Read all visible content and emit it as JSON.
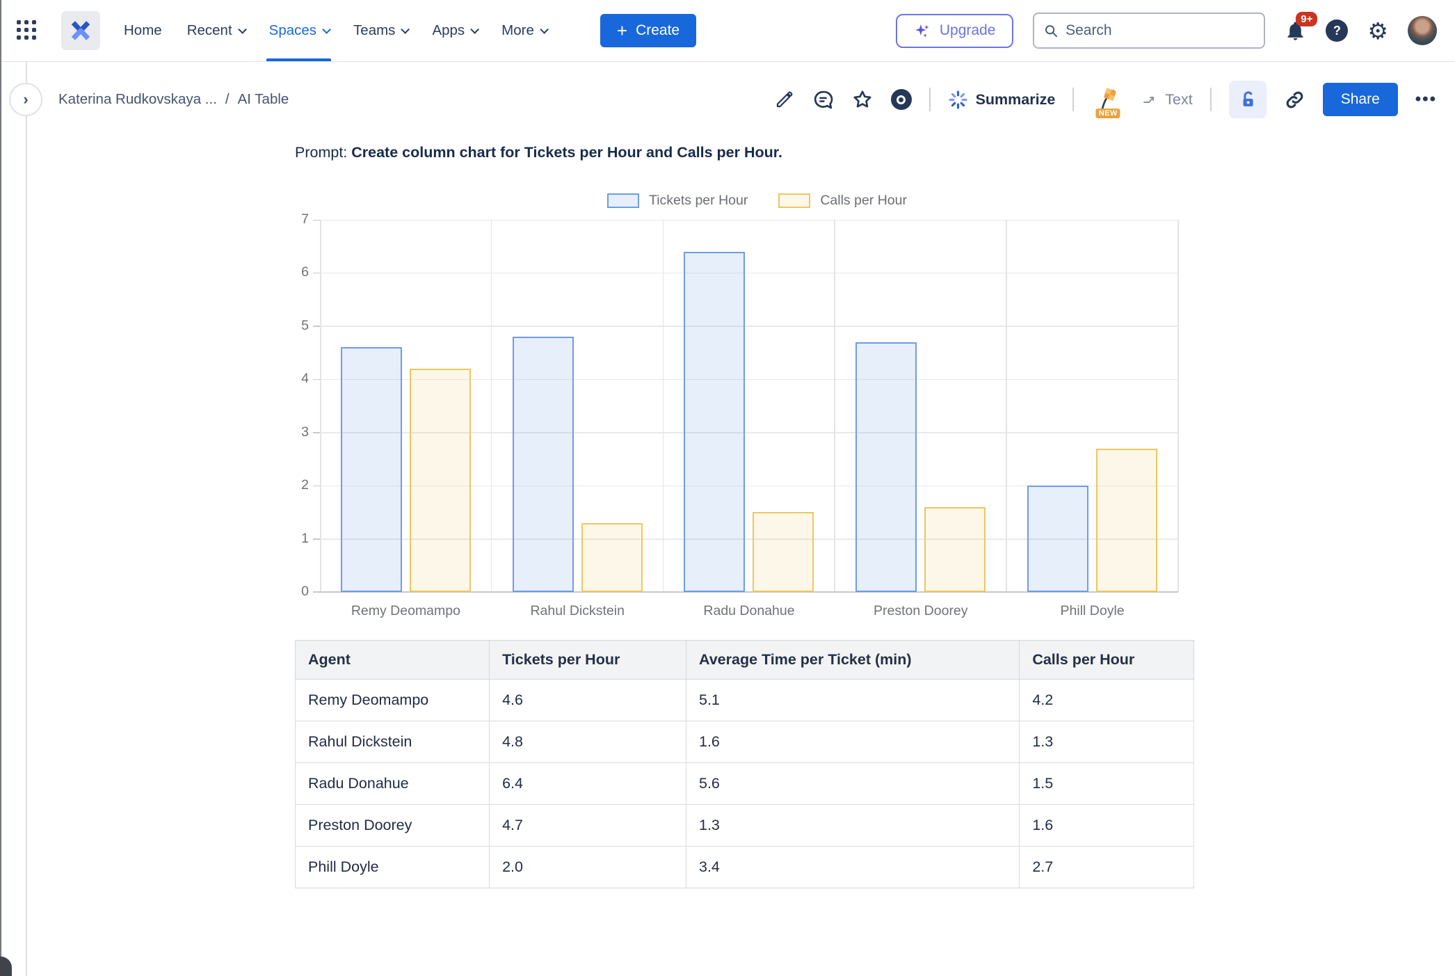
{
  "nav": {
    "items": [
      {
        "label": "Home",
        "chevron": false,
        "active": false
      },
      {
        "label": "Recent",
        "chevron": true,
        "active": false
      },
      {
        "label": "Spaces",
        "chevron": true,
        "active": true
      },
      {
        "label": "Teams",
        "chevron": true,
        "active": false
      },
      {
        "label": "Apps",
        "chevron": true,
        "active": false
      },
      {
        "label": "More",
        "chevron": true,
        "active": false
      }
    ],
    "create_label": "Create",
    "upgrade_label": "Upgrade",
    "search_placeholder": "Search",
    "notification_badge": "9+"
  },
  "toolbar": {
    "breadcrumb": {
      "parent": "Katerina Rudkovskaya ...",
      "separator": "/",
      "current": "AI Table"
    },
    "summarize_label": "Summarize",
    "new_badge": "NEW",
    "text_label": "Text",
    "share_label": "Share"
  },
  "icons": {
    "plus": "+",
    "chevron_right": "›",
    "question": "?",
    "gear": "⚙",
    "ellipsis": "•••"
  },
  "content": {
    "prompt_prefix": "Prompt: ",
    "prompt_text": "Create column chart for Tickets per Hour and Calls per Hour."
  },
  "chart_data": {
    "type": "bar",
    "title": "",
    "xlabel": "",
    "ylabel": "",
    "categories": [
      "Remy Deomampo",
      "Rahul Dickstein",
      "Radu Donahue",
      "Preston Doorey",
      "Phill Doyle"
    ],
    "series": [
      {
        "name": "Tickets per Hour",
        "values": [
          4.6,
          4.8,
          6.4,
          4.7,
          2.0
        ],
        "border_color": "#6e9ce6",
        "fill_rgba": "rgba(108,157,230,0.16)"
      },
      {
        "name": "Calls per Hour",
        "values": [
          4.2,
          1.3,
          1.5,
          1.6,
          2.7
        ],
        "border_color": "#edc75f",
        "fill_rgba": "rgba(237,199,95,0.14)"
      }
    ],
    "ylim": [
      0,
      7
    ],
    "yticks": [
      0,
      1,
      2,
      3,
      4,
      5,
      6,
      7
    ],
    "grid": true,
    "legend_position": "top"
  },
  "table": {
    "headers": [
      "Agent",
      "Tickets per Hour",
      "Average Time per Ticket (min)",
      "Calls per Hour"
    ],
    "rows": [
      [
        "Remy Deomampo",
        "4.6",
        "5.1",
        "4.2"
      ],
      [
        "Rahul Dickstein",
        "4.8",
        "1.6",
        "1.3"
      ],
      [
        "Radu Donahue",
        "6.4",
        "5.6",
        "1.5"
      ],
      [
        "Preston Doorey",
        "4.7",
        "1.3",
        "1.6"
      ],
      [
        "Phill Doyle",
        "2.0",
        "3.4",
        "2.7"
      ]
    ]
  }
}
